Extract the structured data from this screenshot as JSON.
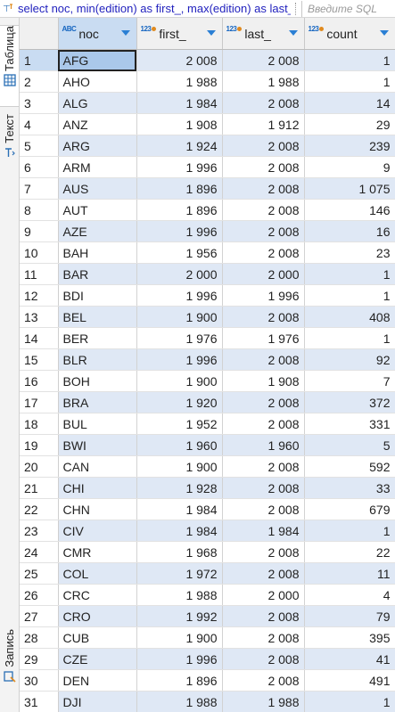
{
  "filter": {
    "query": "select noc, min(edition) as first_, max(edition) as last_, count(*) as count",
    "hint": "Введите SQL"
  },
  "side_tabs": [
    {
      "label": "Таблица",
      "icon": "grid-icon"
    },
    {
      "label": "Текст",
      "icon": "text-icon"
    },
    {
      "label": "Запись",
      "icon": "record-icon"
    }
  ],
  "columns": [
    {
      "label": "noc",
      "type": "ABC"
    },
    {
      "label": "first_",
      "type": "123"
    },
    {
      "label": "last_",
      "type": "123"
    },
    {
      "label": "count",
      "type": "123"
    }
  ],
  "rows": [
    [
      "1",
      "AFG",
      "2 008",
      "2 008",
      "1"
    ],
    [
      "2",
      "AHO",
      "1 988",
      "1 988",
      "1"
    ],
    [
      "3",
      "ALG",
      "1 984",
      "2 008",
      "14"
    ],
    [
      "4",
      "ANZ",
      "1 908",
      "1 912",
      "29"
    ],
    [
      "5",
      "ARG",
      "1 924",
      "2 008",
      "239"
    ],
    [
      "6",
      "ARM",
      "1 996",
      "2 008",
      "9"
    ],
    [
      "7",
      "AUS",
      "1 896",
      "2 008",
      "1 075"
    ],
    [
      "8",
      "AUT",
      "1 896",
      "2 008",
      "146"
    ],
    [
      "9",
      "AZE",
      "1 996",
      "2 008",
      "16"
    ],
    [
      "10",
      "BAH",
      "1 956",
      "2 008",
      "23"
    ],
    [
      "11",
      "BAR",
      "2 000",
      "2 000",
      "1"
    ],
    [
      "12",
      "BDI",
      "1 996",
      "1 996",
      "1"
    ],
    [
      "13",
      "BEL",
      "1 900",
      "2 008",
      "408"
    ],
    [
      "14",
      "BER",
      "1 976",
      "1 976",
      "1"
    ],
    [
      "15",
      "BLR",
      "1 996",
      "2 008",
      "92"
    ],
    [
      "16",
      "BOH",
      "1 900",
      "1 908",
      "7"
    ],
    [
      "17",
      "BRA",
      "1 920",
      "2 008",
      "372"
    ],
    [
      "18",
      "BUL",
      "1 952",
      "2 008",
      "331"
    ],
    [
      "19",
      "BWI",
      "1 960",
      "1 960",
      "5"
    ],
    [
      "20",
      "CAN",
      "1 900",
      "2 008",
      "592"
    ],
    [
      "21",
      "CHI",
      "1 928",
      "2 008",
      "33"
    ],
    [
      "22",
      "CHN",
      "1 984",
      "2 008",
      "679"
    ],
    [
      "23",
      "CIV",
      "1 984",
      "1 984",
      "1"
    ],
    [
      "24",
      "CMR",
      "1 968",
      "2 008",
      "22"
    ],
    [
      "25",
      "COL",
      "1 972",
      "2 008",
      "11"
    ],
    [
      "26",
      "CRC",
      "1 988",
      "2 000",
      "4"
    ],
    [
      "27",
      "CRO",
      "1 992",
      "2 008",
      "79"
    ],
    [
      "28",
      "CUB",
      "1 900",
      "2 008",
      "395"
    ],
    [
      "29",
      "CZE",
      "1 996",
      "2 008",
      "41"
    ],
    [
      "30",
      "DEN",
      "1 896",
      "2 008",
      "491"
    ],
    [
      "31",
      "DJI",
      "1 988",
      "1 988",
      "1"
    ]
  ]
}
